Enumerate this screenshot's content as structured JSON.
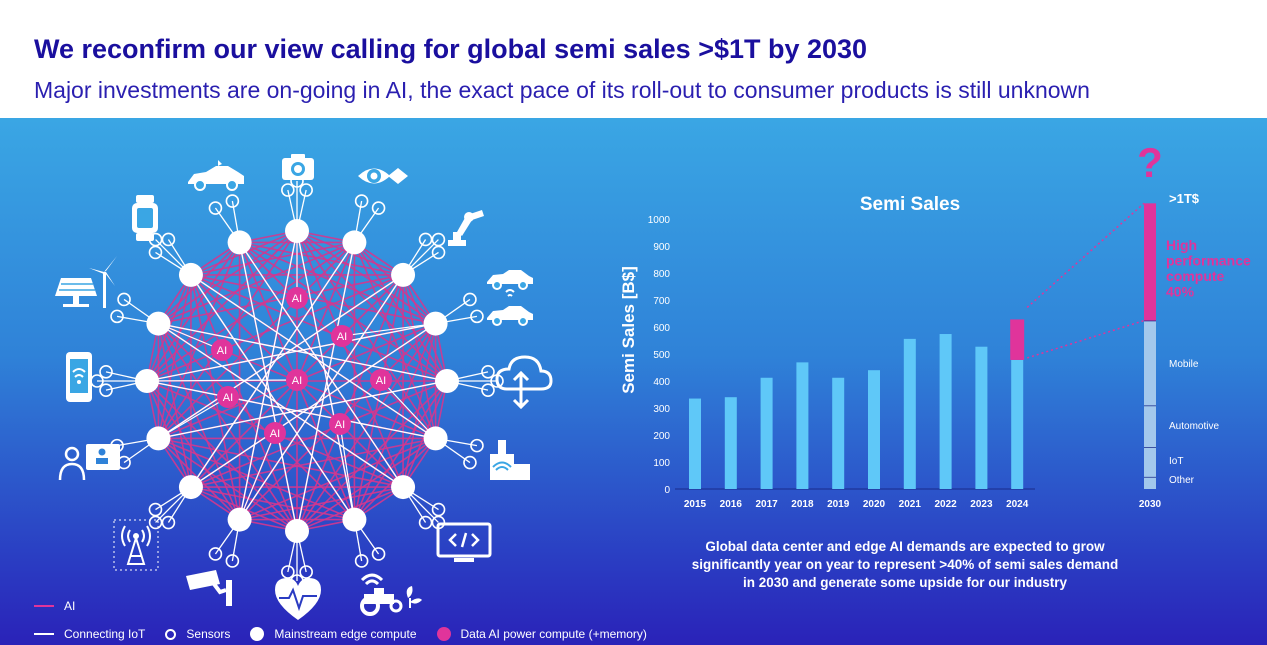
{
  "slide": {
    "title": "We reconfirm our view calling for global semi sales >$1T by 2030",
    "subtitle": "Major investments are on-going in AI, the exact pace of its roll-out to consumer products is still unknown"
  },
  "network": {
    "node_label": "AI",
    "icons": [
      "car-icon",
      "camera-icon",
      "eye-icon",
      "smartwatch-icon",
      "robot-arm-icon",
      "wind-solar-icon",
      "connected-cars-icon",
      "smartphone-icon",
      "cloud-icon",
      "user-badge-icon",
      "factory-wifi-icon",
      "antenna-icon",
      "code-screen-icon",
      "security-camera-icon",
      "heart-rate-icon",
      "tractor-icon"
    ]
  },
  "chart_data": {
    "type": "bar",
    "title": "Semi Sales",
    "ylabel": "Semi Sales [B$]",
    "xlabel": "",
    "ylim": [
      0,
      1000
    ],
    "yticks": [
      0,
      100,
      200,
      300,
      400,
      500,
      600,
      700,
      800,
      900,
      1000
    ],
    "categories": [
      "2015",
      "2016",
      "2017",
      "2018",
      "2019",
      "2020",
      "2021",
      "2022",
      "2023",
      "2024"
    ],
    "values": [
      335,
      340,
      412,
      469,
      412,
      440,
      556,
      574,
      527,
      478
    ],
    "highlight": {
      "category": "2024",
      "base": 478,
      "top": 628,
      "color": "#e0349b"
    },
    "projection": {
      "category": "2030",
      "top_label": ">1T$",
      "question": "?",
      "total": 1060,
      "segments": [
        {
          "name": "Other",
          "to": 45,
          "color": "#a3c8ec"
        },
        {
          "name": "IoT",
          "to": 155,
          "color": "#a3c8ec"
        },
        {
          "name": "Automotive",
          "to": 310,
          "color": "#a3c8ec"
        },
        {
          "name": "Mobile",
          "to": 625,
          "color": "#a3c8ec"
        },
        {
          "name": "High performance compute 40%",
          "to": 1060,
          "color": "#e0349b"
        }
      ],
      "hpc_label": [
        "High",
        "performance",
        "compute",
        "40%"
      ]
    },
    "colors": {
      "bar": "#5fc8f8",
      "accent": "#e0349b",
      "projection_base": "#a3c8ec"
    }
  },
  "caption": {
    "lines": [
      "Global data center and edge AI demands are expected to grow",
      "significantly year on year to represent >40% of semi sales demand",
      "in 2030 and generate some upside for our industry"
    ]
  },
  "legend": {
    "ai": "AI",
    "connecting_iot": "Connecting IoT",
    "sensors": "Sensors",
    "mainstream": "Mainstream edge compute",
    "data_ai": "Data AI power compute (+memory)"
  },
  "colors": {
    "title": "#1a0f9e",
    "accent": "#e0349b",
    "white": "#ffffff"
  }
}
